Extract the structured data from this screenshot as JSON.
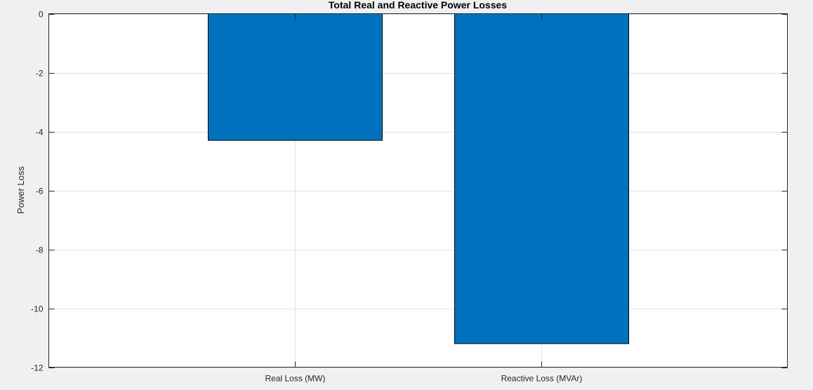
{
  "chart_data": {
    "type": "bar",
    "title": "Total Real and Reactive Power Losses",
    "xlabel": "",
    "ylabel": "Power Loss",
    "categories": [
      "Real Loss (MW)",
      "Reactive Loss (MVAr)"
    ],
    "values": [
      -4.3,
      -11.2
    ],
    "ylim": [
      -12,
      0
    ],
    "yticks": [
      0,
      -2,
      -4,
      -6,
      -8,
      -10,
      -12
    ],
    "grid": true,
    "bar_color": "#0072BD"
  }
}
